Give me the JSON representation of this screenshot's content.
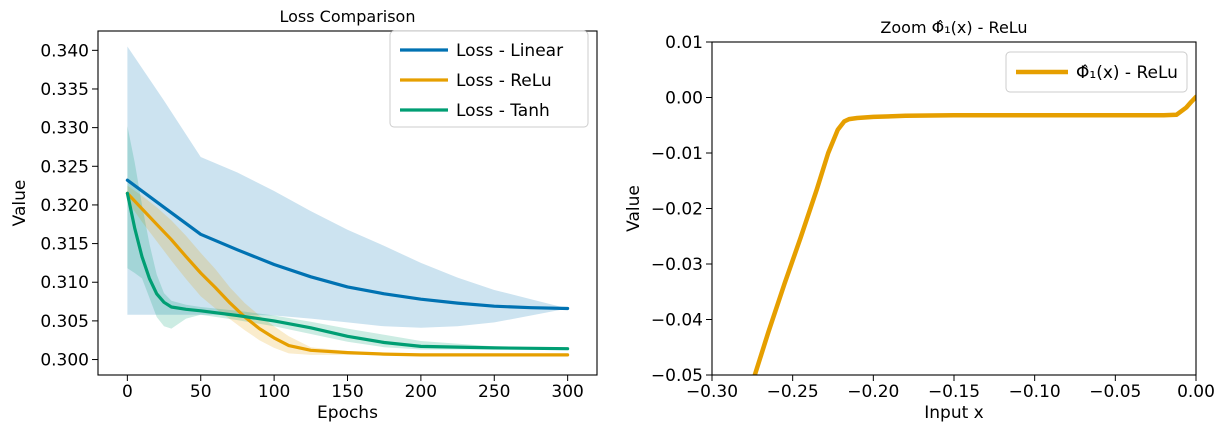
{
  "chart_data": [
    {
      "type": "line",
      "title": "Loss Comparison",
      "xlabel": "Epochs",
      "ylabel": "Value",
      "xlim": [
        -20,
        320
      ],
      "ylim": [
        0.298,
        0.3425
      ],
      "xticks": [
        0,
        50,
        100,
        150,
        200,
        250,
        300
      ],
      "yticks": [
        0.3,
        0.305,
        0.31,
        0.315,
        0.32,
        0.325,
        0.33,
        0.335,
        0.34
      ],
      "ytick_labels": [
        "0.300",
        "0.305",
        "0.310",
        "0.315",
        "0.320",
        "0.325",
        "0.330",
        "0.335",
        "0.340"
      ],
      "legend_position": "top-right",
      "grid": false,
      "series": [
        {
          "name": "Loss - Linear",
          "color": "#0072b2",
          "x": [
            0,
            25,
            50,
            75,
            100,
            125,
            150,
            175,
            200,
            225,
            250,
            275,
            300
          ],
          "values": [
            0.3232,
            0.3197,
            0.3162,
            0.3142,
            0.3123,
            0.3107,
            0.3094,
            0.3085,
            0.3078,
            0.3073,
            0.3069,
            0.3067,
            0.3066
          ],
          "band_upper": [
            0.3405,
            0.3335,
            0.3262,
            0.3242,
            0.3218,
            0.3192,
            0.3168,
            0.3147,
            0.3125,
            0.3106,
            0.309,
            0.3078,
            0.3066
          ],
          "band_lower": [
            0.3058,
            0.3058,
            0.3058,
            0.3058,
            0.3057,
            0.3053,
            0.3048,
            0.3043,
            0.3041,
            0.3043,
            0.3048,
            0.3057,
            0.3066
          ]
        },
        {
          "name": "Loss - ReLu",
          "color": "#e69f00",
          "x": [
            0,
            10,
            20,
            30,
            40,
            50,
            60,
            70,
            80,
            90,
            100,
            110,
            125,
            150,
            175,
            200,
            250,
            300
          ],
          "values": [
            0.3215,
            0.3195,
            0.3175,
            0.3155,
            0.3133,
            0.3112,
            0.3093,
            0.3073,
            0.3055,
            0.304,
            0.3028,
            0.3018,
            0.3012,
            0.3009,
            0.3007,
            0.3006,
            0.3006,
            0.3006
          ],
          "band_upper": [
            0.3225,
            0.3212,
            0.3197,
            0.318,
            0.316,
            0.3138,
            0.3117,
            0.3093,
            0.3073,
            0.3057,
            0.3043,
            0.303,
            0.3016,
            0.3011,
            0.3008,
            0.3007,
            0.3006,
            0.3006
          ],
          "band_lower": [
            0.3205,
            0.3178,
            0.3153,
            0.3128,
            0.3104,
            0.3082,
            0.3066,
            0.3052,
            0.3038,
            0.3025,
            0.3015,
            0.3008,
            0.3006,
            0.3006,
            0.3006,
            0.3006,
            0.3006,
            0.3006
          ]
        },
        {
          "name": "Loss - Tanh",
          "color": "#009e73",
          "x": [
            0,
            5,
            10,
            15,
            20,
            25,
            30,
            40,
            50,
            75,
            100,
            125,
            150,
            175,
            200,
            250,
            300
          ],
          "values": [
            0.3215,
            0.317,
            0.3133,
            0.3105,
            0.3085,
            0.3074,
            0.3068,
            0.3065,
            0.3063,
            0.3057,
            0.305,
            0.3041,
            0.303,
            0.3022,
            0.3017,
            0.3015,
            0.3014
          ],
          "band_upper": [
            0.3302,
            0.3255,
            0.32,
            0.315,
            0.311,
            0.3086,
            0.3076,
            0.3071,
            0.3068,
            0.3063,
            0.3057,
            0.3049,
            0.304,
            0.3032,
            0.3024,
            0.3017,
            0.3015
          ],
          "band_lower": [
            0.3118,
            0.3112,
            0.3105,
            0.308,
            0.3055,
            0.3043,
            0.304,
            0.3053,
            0.3058,
            0.3051,
            0.3043,
            0.3033,
            0.3023,
            0.3016,
            0.3013,
            0.3013,
            0.3013
          ]
        }
      ]
    },
    {
      "type": "line",
      "title": "Zoom Φ̂₁(x) - ReLu",
      "xlabel": "Input x",
      "ylabel": "Value",
      "xlim": [
        -0.3,
        0.0
      ],
      "ylim": [
        -0.05,
        0.01
      ],
      "xticks": [
        -0.3,
        -0.25,
        -0.2,
        -0.15,
        -0.1,
        -0.05,
        0.0
      ],
      "xtick_labels": [
        "−0.30",
        "−0.25",
        "−0.20",
        "−0.15",
        "−0.10",
        "−0.05",
        "0.00"
      ],
      "yticks": [
        -0.05,
        -0.04,
        -0.03,
        -0.02,
        -0.01,
        0.0,
        0.01
      ],
      "ytick_labels": [
        "−0.05",
        "−0.04",
        "−0.03",
        "−0.02",
        "−0.01",
        "0.00",
        "0.01"
      ],
      "legend_position": "top-right",
      "grid": false,
      "series": [
        {
          "name": "Φ̂₁(x) - ReLu",
          "color": "#e69f00",
          "x": [
            -0.2735,
            -0.265,
            -0.255,
            -0.245,
            -0.235,
            -0.228,
            -0.222,
            -0.218,
            -0.215,
            -0.21,
            -0.2,
            -0.18,
            -0.15,
            -0.1,
            -0.05,
            -0.02,
            -0.012,
            -0.006,
            -0.003,
            0.0
          ],
          "values": [
            -0.05,
            -0.0422,
            -0.0335,
            -0.0252,
            -0.0165,
            -0.01,
            -0.0058,
            -0.0043,
            -0.0039,
            -0.0037,
            -0.0035,
            -0.0033,
            -0.0032,
            -0.0032,
            -0.0032,
            -0.0032,
            -0.0031,
            -0.0018,
            -0.0008,
            0.0001
          ]
        }
      ]
    }
  ]
}
